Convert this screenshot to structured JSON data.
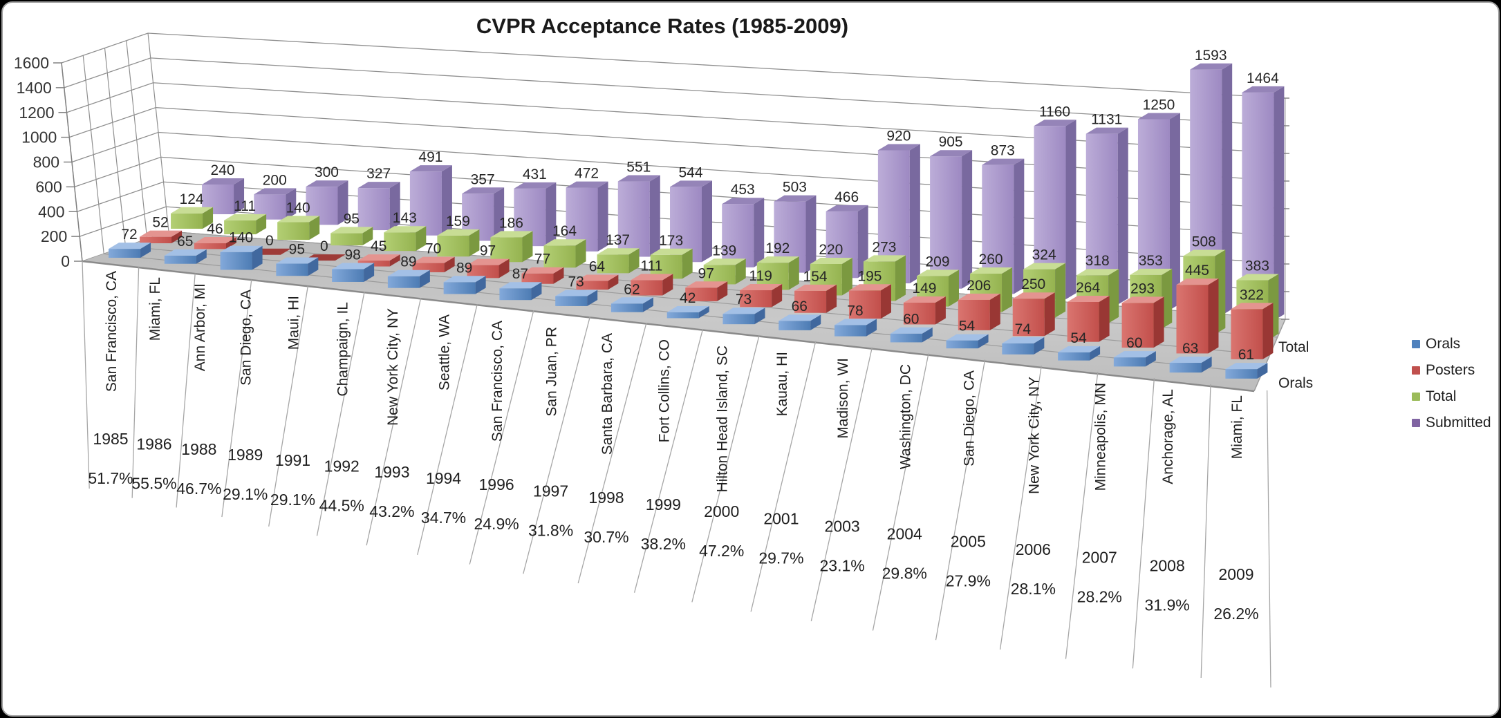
{
  "frame": {
    "background": "#000000",
    "card_background": "#ffffff",
    "card_border": "#9d9d9d"
  },
  "chart_data": {
    "type": "bar",
    "variant": "3d-column",
    "title": "CVPR Acceptance Rates (1985-2009)",
    "categories": [
      {
        "city": "San Francisco, CA",
        "year": "1985",
        "acceptance_rate": "51.7%"
      },
      {
        "city": "Miami, FL",
        "year": "1986",
        "acceptance_rate": "55.5%"
      },
      {
        "city": "Ann Arbor, MI",
        "year": "1988",
        "acceptance_rate": "46.7%"
      },
      {
        "city": "San Diego, CA",
        "year": "1989",
        "acceptance_rate": "29.1%"
      },
      {
        "city": "Maui, HI",
        "year": "1991",
        "acceptance_rate": "29.1%"
      },
      {
        "city": "Champaign, IL",
        "year": "1992",
        "acceptance_rate": "44.5%"
      },
      {
        "city": "New York City, NY",
        "year": "1993",
        "acceptance_rate": "43.2%"
      },
      {
        "city": "Seattle, WA",
        "year": "1994",
        "acceptance_rate": "34.7%"
      },
      {
        "city": "San Francisco, CA",
        "year": "1996",
        "acceptance_rate": "24.9%"
      },
      {
        "city": "San Juan, PR",
        "year": "1997",
        "acceptance_rate": "31.8%"
      },
      {
        "city": "Santa Barbara, CA",
        "year": "1998",
        "acceptance_rate": "30.7%"
      },
      {
        "city": "Fort Collins, CO",
        "year": "1999",
        "acceptance_rate": "38.2%"
      },
      {
        "city": "Hilton Head Island, SC",
        "year": "2000",
        "acceptance_rate": "47.2%"
      },
      {
        "city": "Kauau, HI",
        "year": "2001",
        "acceptance_rate": "29.7%"
      },
      {
        "city": "Madison, WI",
        "year": "2003",
        "acceptance_rate": "23.1%"
      },
      {
        "city": "Washington, DC",
        "year": "2004",
        "acceptance_rate": "29.8%"
      },
      {
        "city": "San Diego, CA",
        "year": "2005",
        "acceptance_rate": "27.9%"
      },
      {
        "city": "New York City, NY",
        "year": "2006",
        "acceptance_rate": "28.1%"
      },
      {
        "city": "Minneapolis, MN",
        "year": "2007",
        "acceptance_rate": "28.2%"
      },
      {
        "city": "Anchorage, AL",
        "year": "2008",
        "acceptance_rate": "31.9%"
      },
      {
        "city": "Miami, FL",
        "year": "2009",
        "acceptance_rate": "26.2%"
      }
    ],
    "series": [
      {
        "name": "Orals",
        "color": "#4F81BD",
        "faces": {
          "front_light": "#83a9da",
          "front_dark": "#4d7cb4",
          "top": "#a3c0e6",
          "side": "#41689e"
        },
        "values": [
          72,
          65,
          140,
          95,
          98,
          89,
          89,
          87,
          73,
          62,
          42,
          73,
          66,
          78,
          60,
          54,
          74,
          54,
          60,
          63,
          61
        ]
      },
      {
        "name": "Posters",
        "color": "#C0504D",
        "faces": {
          "front_light": "#da7570",
          "front_dark": "#c24f4b",
          "top": "#e49490",
          "side": "#993734",
          "zero_tile": "#9e3b38"
        },
        "values": [
          52,
          46,
          0,
          0,
          45,
          70,
          97,
          77,
          64,
          111,
          97,
          119,
          154,
          195,
          149,
          206,
          250,
          264,
          293,
          445,
          322
        ]
      },
      {
        "name": "Total",
        "color": "#9BBB59",
        "faces": {
          "front_light": "#b3cf74",
          "front_dark": "#95b350",
          "top": "#c8dd95",
          "side": "#7b9940"
        },
        "values": [
          124,
          111,
          140,
          95,
          143,
          159,
          186,
          164,
          137,
          173,
          139,
          192,
          220,
          273,
          209,
          260,
          324,
          318,
          353,
          508,
          383
        ]
      },
      {
        "name": "Submitted",
        "color": "#8064A2",
        "faces": {
          "front_light": "#bcadd8",
          "front_dark": "#9d89c2",
          "top": "#9584b8",
          "side": "#79699f"
        },
        "values": [
          240,
          200,
          300,
          327,
          491,
          357,
          431,
          472,
          551,
          544,
          453,
          503,
          466,
          920,
          905,
          873,
          1160,
          1131,
          1250,
          1593,
          1464
        ]
      }
    ],
    "y_axis": {
      "min": 0,
      "max": 1600,
      "step": 200,
      "ticks": [
        "0",
        "200",
        "400",
        "600",
        "800",
        "1000",
        "1200",
        "1400",
        "1600"
      ]
    },
    "depth_axis_labels": [
      {
        "text": "Orals",
        "row": 0
      },
      {
        "text": "Total",
        "row": 2
      }
    ],
    "legend_position": "right",
    "grid": true,
    "styles": {
      "grid_color": "#8f8f8f",
      "wall_edge_color": "#b5b5b5",
      "axis_color": "#808080",
      "floor_fill": "#c3c3c3",
      "floor_line": "#9b9b9b",
      "floor_front_edge": "#8a8a8a",
      "separator_color": "#a6a6a6",
      "label_color": "#262626",
      "tick_label_color": "#333333",
      "category_label_color": "#1f1f1f"
    }
  }
}
